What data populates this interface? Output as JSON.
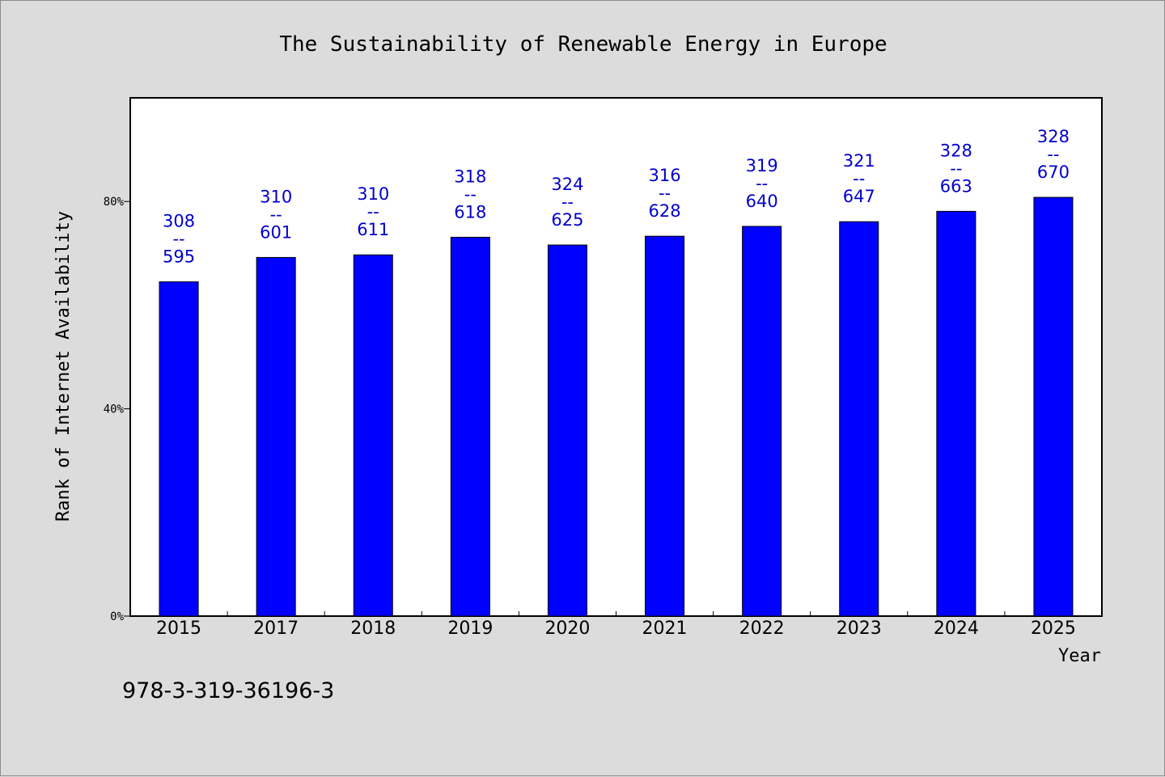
{
  "chart_data": {
    "type": "bar",
    "title": "The Sustainability of Renewable Energy in Europe",
    "xlabel": "Year",
    "ylabel": "Rank of Internet Availability",
    "categories": [
      "2015",
      "2017",
      "2018",
      "2019",
      "2020",
      "2021",
      "2022",
      "2023",
      "2024",
      "2025"
    ],
    "values": [
      64.5,
      69.2,
      69.7,
      73.1,
      71.6,
      73.3,
      75.2,
      76.1,
      78.1,
      80.8
    ],
    "value_unit": "%",
    "data_labels": [
      {
        "top": "308",
        "sep": "--",
        "bottom": "595"
      },
      {
        "top": "310",
        "sep": "--",
        "bottom": "601"
      },
      {
        "top": "310",
        "sep": "--",
        "bottom": "611"
      },
      {
        "top": "318",
        "sep": "--",
        "bottom": "618"
      },
      {
        "top": "324",
        "sep": "--",
        "bottom": "625"
      },
      {
        "top": "316",
        "sep": "--",
        "bottom": "628"
      },
      {
        "top": "319",
        "sep": "--",
        "bottom": "640"
      },
      {
        "top": "321",
        "sep": "--",
        "bottom": "647"
      },
      {
        "top": "328",
        "sep": "--",
        "bottom": "663"
      },
      {
        "top": "328",
        "sep": "--",
        "bottom": "670"
      }
    ],
    "yticks": [
      0,
      40,
      80
    ],
    "ytick_labels": [
      "0%",
      "40%",
      "80%"
    ],
    "ylim": [
      0,
      100
    ],
    "grid": false,
    "bar_color": "#0000ff",
    "label_color": "#0000cc"
  },
  "footnote": "978-3-319-36196-3",
  "colors": {
    "background": "#dcdcdc",
    "plot_background": "#ffffff"
  }
}
